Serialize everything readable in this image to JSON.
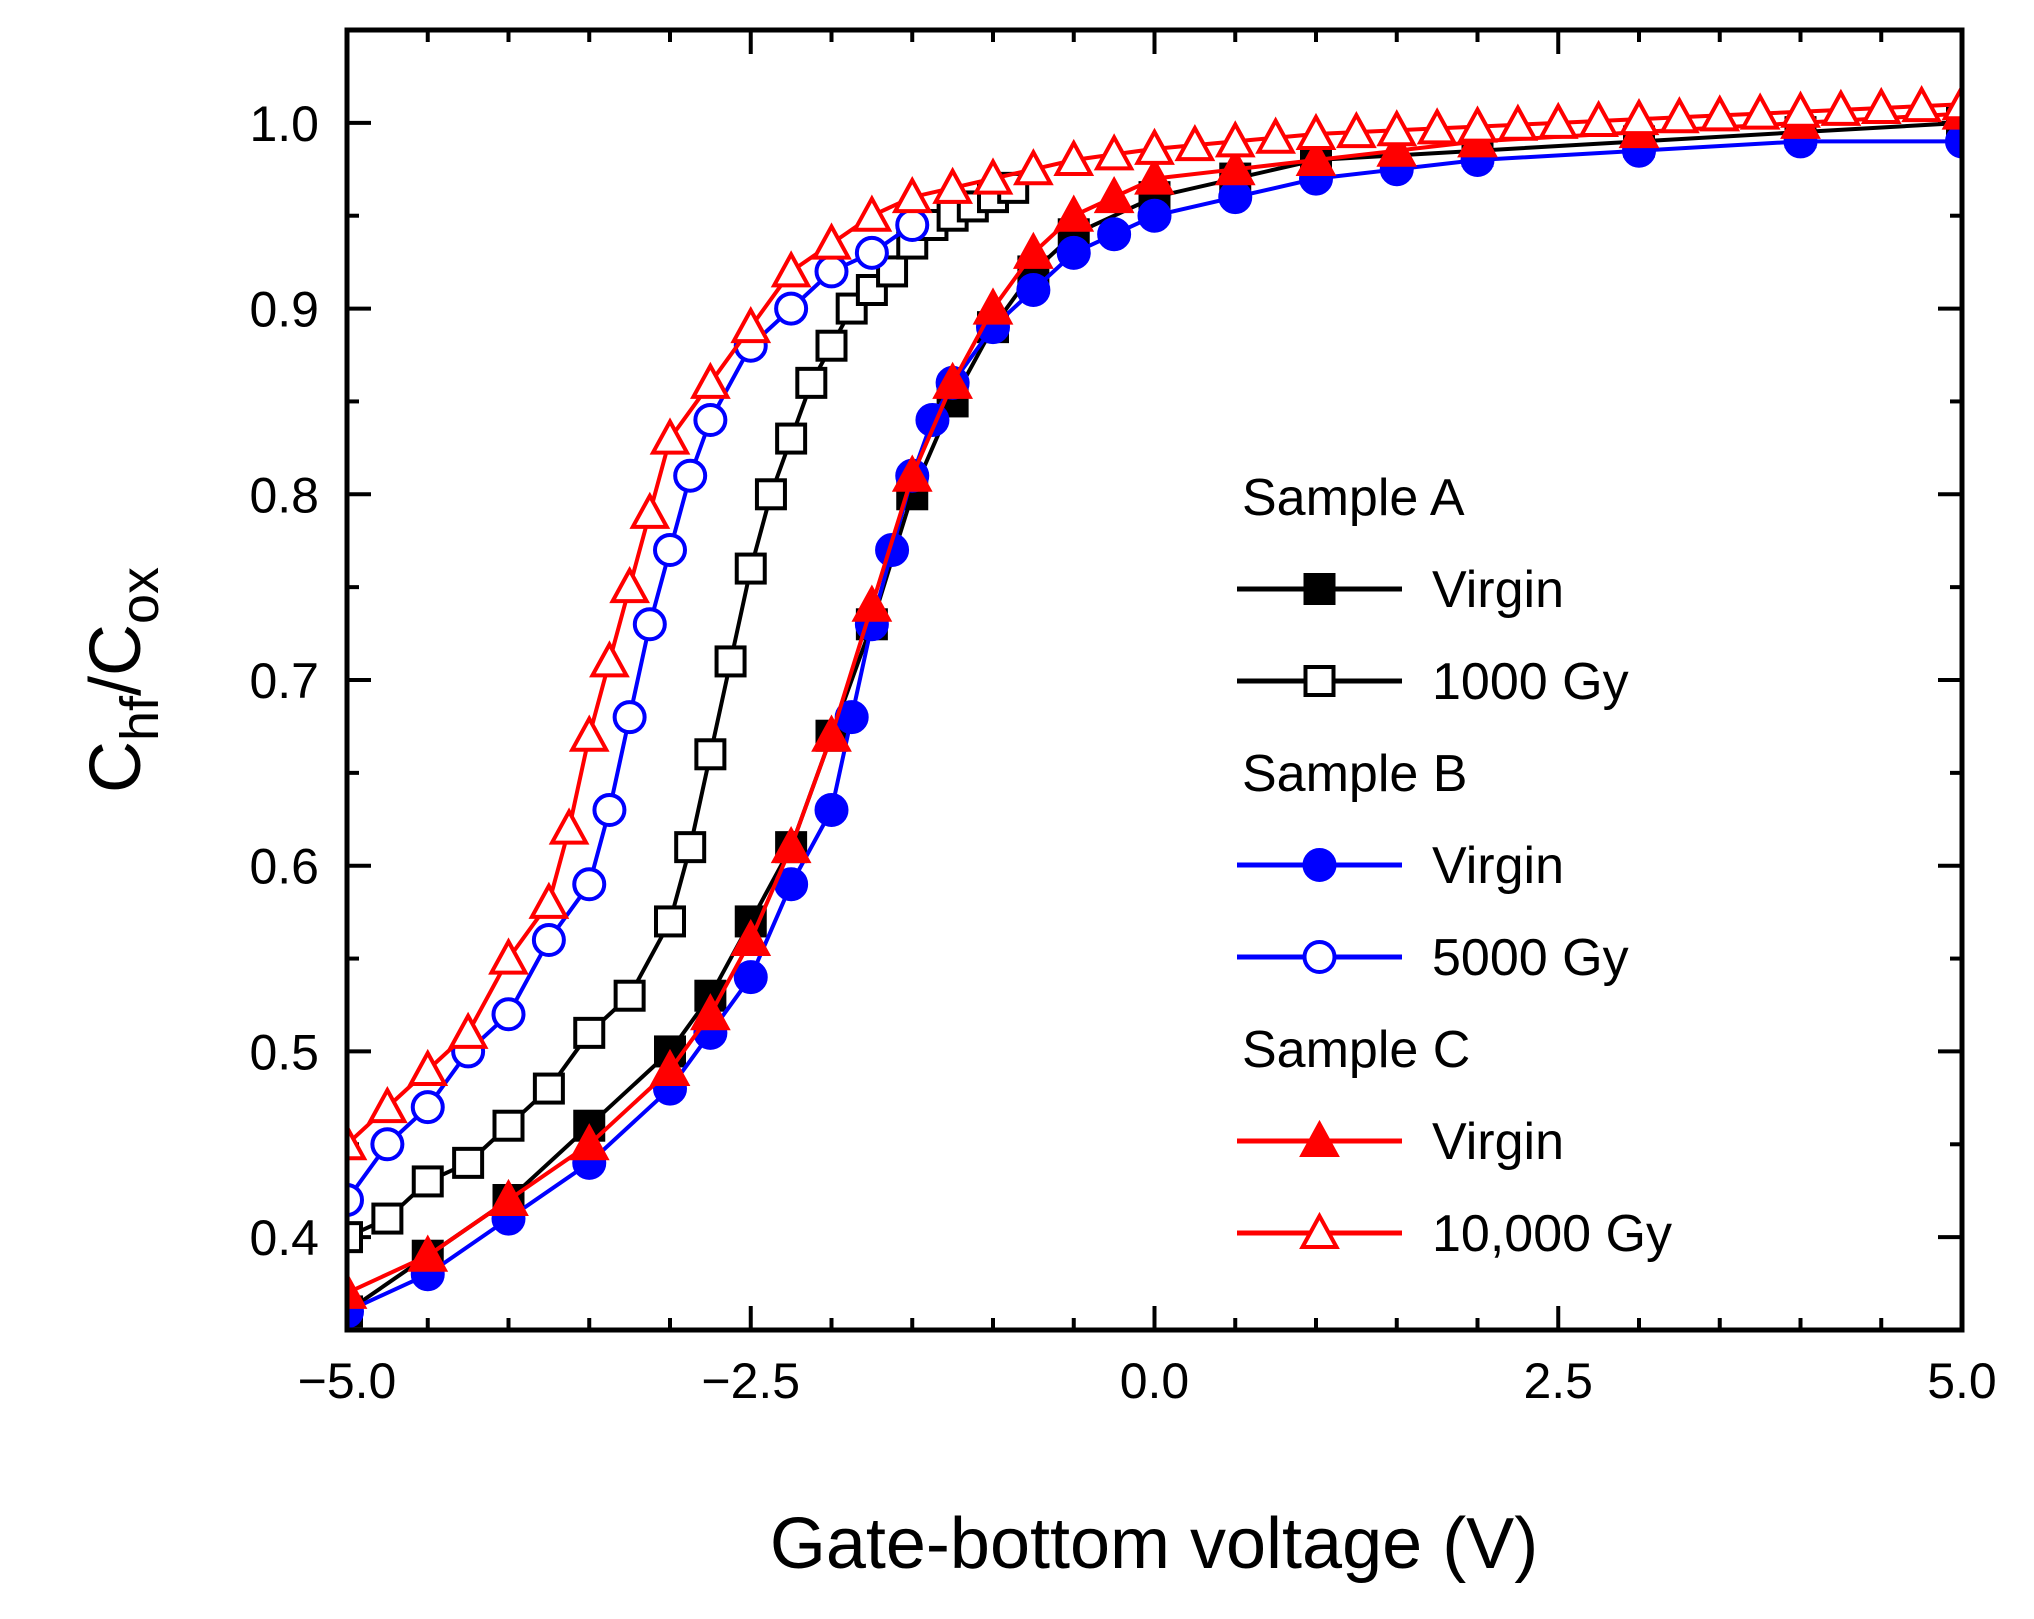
{
  "chart_data": {
    "type": "scatter",
    "title": "",
    "xlabel": "Gate-bottom voltage (V)",
    "ylabel": {
      "base": "C",
      "sub1": "hf",
      "sep": "/C",
      "sub2": "ox"
    },
    "xlim": [
      -5.0,
      5.0
    ],
    "ylim": [
      0.35,
      1.05
    ],
    "x_ticks": [
      -5.0,
      -2.5,
      0.0,
      2.5,
      5.0
    ],
    "x_tick_labels": [
      "−5.0",
      "−2.5",
      "0.0",
      "2.5",
      "5.0"
    ],
    "y_ticks": [
      0.4,
      0.5,
      0.6,
      0.7,
      0.8,
      0.9,
      1.0
    ],
    "y_tick_labels": [
      "0.4",
      "0.5",
      "0.6",
      "0.7",
      "0.8",
      "0.9",
      "1.0"
    ],
    "grid": false,
    "legend_position": "center-right",
    "legend_groups": [
      {
        "label": "Sample A",
        "series_names": [
          "Sample A Virgin",
          "Sample A 1000 Gy"
        ]
      },
      {
        "label": "Sample B",
        "series_names": [
          "Sample B Virgin",
          "Sample B 5000 Gy"
        ]
      },
      {
        "label": "Sample C",
        "series_names": [
          "Sample C Virgin",
          "Sample C 10,000 Gy"
        ]
      }
    ],
    "series": [
      {
        "name": "Sample A Virgin",
        "legend_label": "Virgin",
        "marker": "square",
        "filled": true,
        "color": "#000000",
        "x": [
          -5.0,
          -4.5,
          -4.0,
          -3.5,
          -3.0,
          -2.75,
          -2.5,
          -2.25,
          -2.0,
          -1.75,
          -1.5,
          -1.25,
          -1.0,
          -0.75,
          -0.5,
          0.0,
          0.5,
          1.0,
          2.0,
          3.0,
          4.0,
          5.0
        ],
        "y": [
          0.36,
          0.39,
          0.42,
          0.46,
          0.5,
          0.53,
          0.57,
          0.61,
          0.67,
          0.73,
          0.8,
          0.85,
          0.89,
          0.92,
          0.94,
          0.96,
          0.97,
          0.98,
          0.985,
          0.99,
          0.995,
          1.0
        ]
      },
      {
        "name": "Sample A 1000 Gy",
        "legend_label": "1000 Gy",
        "marker": "square",
        "filled": false,
        "color": "#000000",
        "x": [
          -5.0,
          -4.75,
          -4.5,
          -4.25,
          -4.0,
          -3.75,
          -3.5,
          -3.25,
          -3.0,
          -2.875,
          -2.75,
          -2.625,
          -2.5,
          -2.375,
          -2.25,
          -2.125,
          -2.0,
          -1.875,
          -1.75,
          -1.625,
          -1.5,
          -1.375,
          -1.25,
          -1.125,
          -1.0,
          -0.875
        ],
        "y": [
          0.4,
          0.41,
          0.43,
          0.44,
          0.46,
          0.48,
          0.51,
          0.53,
          0.57,
          0.61,
          0.66,
          0.71,
          0.76,
          0.8,
          0.83,
          0.86,
          0.88,
          0.9,
          0.91,
          0.92,
          0.935,
          0.945,
          0.95,
          0.955,
          0.96,
          0.965
        ]
      },
      {
        "name": "Sample B Virgin",
        "legend_label": "Virgin",
        "marker": "circle",
        "filled": true,
        "color": "#0000ff",
        "x": [
          -5.0,
          -4.5,
          -4.0,
          -3.5,
          -3.0,
          -2.75,
          -2.5,
          -2.25,
          -2.0,
          -1.875,
          -1.75,
          -1.625,
          -1.5,
          -1.375,
          -1.25,
          -1.0,
          -0.75,
          -0.5,
          -0.25,
          0.0,
          0.5,
          1.0,
          1.5,
          2.0,
          3.0,
          4.0,
          5.0
        ],
        "y": [
          0.36,
          0.38,
          0.41,
          0.44,
          0.48,
          0.51,
          0.54,
          0.59,
          0.63,
          0.68,
          0.73,
          0.77,
          0.81,
          0.84,
          0.86,
          0.89,
          0.91,
          0.93,
          0.94,
          0.95,
          0.96,
          0.97,
          0.975,
          0.98,
          0.985,
          0.99,
          0.99
        ]
      },
      {
        "name": "Sample B 5000 Gy",
        "legend_label": "5000 Gy",
        "marker": "circle",
        "filled": false,
        "color": "#0000ff",
        "x": [
          -5.0,
          -4.75,
          -4.5,
          -4.25,
          -4.0,
          -3.75,
          -3.5,
          -3.375,
          -3.25,
          -3.125,
          -3.0,
          -2.875,
          -2.75,
          -2.5,
          -2.25,
          -2.0,
          -1.75,
          -1.5
        ],
        "y": [
          0.42,
          0.45,
          0.47,
          0.5,
          0.52,
          0.56,
          0.59,
          0.63,
          0.68,
          0.73,
          0.77,
          0.81,
          0.84,
          0.88,
          0.9,
          0.92,
          0.93,
          0.945
        ]
      },
      {
        "name": "Sample C Virgin",
        "legend_label": "Virgin",
        "marker": "triangle",
        "filled": true,
        "color": "#ff0000",
        "x": [
          -5.0,
          -4.5,
          -4.0,
          -3.5,
          -3.0,
          -2.75,
          -2.5,
          -2.25,
          -2.0,
          -1.75,
          -1.5,
          -1.25,
          -1.0,
          -0.75,
          -0.5,
          -0.25,
          0.0,
          0.5,
          1.0,
          1.5,
          2.0,
          3.0,
          4.0,
          5.0
        ],
        "y": [
          0.37,
          0.39,
          0.42,
          0.45,
          0.49,
          0.52,
          0.56,
          0.61,
          0.67,
          0.74,
          0.81,
          0.86,
          0.9,
          0.93,
          0.95,
          0.96,
          0.97,
          0.975,
          0.98,
          0.985,
          0.99,
          0.995,
          1.0,
          1.005
        ]
      },
      {
        "name": "Sample C 10,000 Gy",
        "legend_label": "10,000 Gy",
        "marker": "triangle",
        "filled": false,
        "color": "#ff0000",
        "x": [
          -5.0,
          -4.75,
          -4.5,
          -4.25,
          -4.0,
          -3.75,
          -3.625,
          -3.5,
          -3.375,
          -3.25,
          -3.125,
          -3.0,
          -2.75,
          -2.5,
          -2.25,
          -2.0,
          -1.75,
          -1.5,
          -1.25,
          -1.0,
          -0.75,
          -0.5,
          -0.25,
          0.0,
          0.25,
          0.5,
          0.75,
          1.0,
          1.25,
          1.5,
          1.75,
          2.0,
          2.25,
          2.5,
          2.75,
          3.0,
          3.25,
          3.5,
          3.75,
          4.0,
          4.25,
          4.5,
          4.75,
          5.0
        ],
        "y": [
          0.45,
          0.47,
          0.49,
          0.51,
          0.55,
          0.58,
          0.62,
          0.67,
          0.71,
          0.75,
          0.79,
          0.83,
          0.86,
          0.89,
          0.92,
          0.935,
          0.95,
          0.96,
          0.965,
          0.97,
          0.975,
          0.98,
          0.983,
          0.986,
          0.988,
          0.99,
          0.992,
          0.994,
          0.995,
          0.996,
          0.997,
          0.998,
          0.999,
          1.0,
          1.001,
          1.002,
          1.003,
          1.004,
          1.005,
          1.006,
          1.007,
          1.008,
          1.009,
          1.01
        ]
      }
    ]
  }
}
